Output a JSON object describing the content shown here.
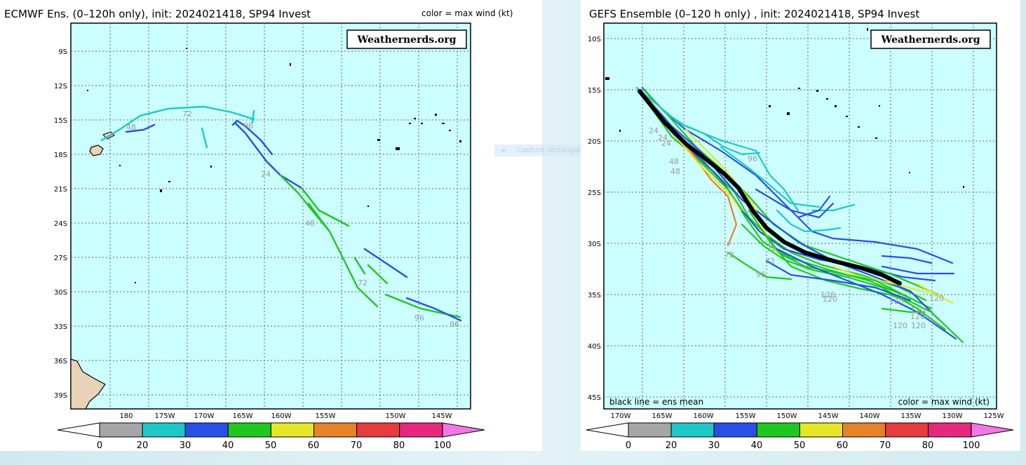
{
  "left_panel": {
    "title": "ECMWF Ens. (0–120h only), init: 2024021418, SP94 Invest",
    "subtitle": "color = max wind (kt)",
    "watermark": "Weathernerds.org",
    "lat_labels": [
      "9S",
      "12S",
      "15S",
      "18S",
      "21S",
      "24S",
      "27S",
      "30S",
      "33S",
      "36S",
      "39S"
    ],
    "lon_labels": [
      "180",
      "175W",
      "170W",
      "165W",
      "160W",
      "155W",
      "150W",
      "145W"
    ],
    "hour_labels": [
      "48",
      "72",
      "96",
      "24",
      "48",
      "72",
      "96",
      "96"
    ]
  },
  "right_panel": {
    "title": "GEFS Ensemble (0–120 h only) , init: 2024021418, SP94 Invest",
    "watermark": "Weathernerds.org",
    "lat_labels": [
      "10S",
      "15S",
      "20S",
      "25S",
      "30S",
      "35S",
      "40S",
      "45S"
    ],
    "lon_labels": [
      "170W",
      "165W",
      "160W",
      "155W",
      "150W",
      "145W",
      "140W",
      "135W",
      "130W",
      "125W"
    ],
    "footer_left": "black line = ens mean",
    "footer_right": "color = max wind (kt)",
    "hour_labels": [
      "24",
      "24",
      "24",
      "48",
      "48",
      "96",
      "72",
      "72",
      "72",
      "96",
      "120",
      "120",
      "120",
      "120",
      "120",
      "120",
      "120",
      "120"
    ]
  },
  "colorbar": {
    "labels": [
      "0",
      "20",
      "30",
      "40",
      "50",
      "60",
      "70",
      "80",
      "100"
    ],
    "colors": [
      "#a6a6a6",
      "#1ec8c8",
      "#2850e6",
      "#1ec81e",
      "#e6e628",
      "#e68228",
      "#e63c3c",
      "#e6287d"
    ],
    "arrow_right_color": "#f078e6",
    "arrow_left_color": "#ffffff"
  },
  "overlay": {
    "label": "Capture rectangulaire"
  },
  "colors": {
    "ocean": "#ccffff",
    "land": "#e8d3b8",
    "grid": "#555555",
    "mean_track": "#000000"
  }
}
